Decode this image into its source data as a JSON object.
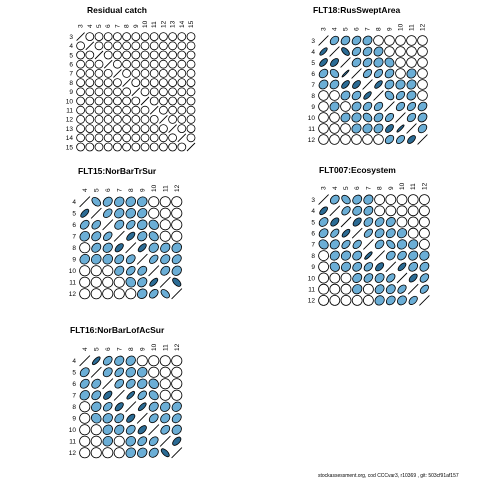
{
  "footer": "stockassessment.org,  cod CCCvar3,  r10369 ,  git:  503cf91af157",
  "colors": {
    "positive": "#6baed6",
    "pos_strong": "#2b6b94",
    "neutral": "#ffffff",
    "stroke": "#000000"
  },
  "chart_data": [
    {
      "type": "correlation-matrix",
      "title": "Residual catch",
      "ages": [
        "3",
        "4",
        "5",
        "6",
        "7",
        "8",
        "9",
        "10",
        "11",
        "12",
        "13",
        "14",
        "15"
      ],
      "upper_strength": 0.05,
      "lower_strength": 0.0
    },
    {
      "type": "correlation-matrix",
      "title": "FLT18:RusSweptArea",
      "ages": [
        "3",
        "4",
        "5",
        "6",
        "7",
        "8",
        "9",
        "10",
        "11",
        "12"
      ],
      "upper_strength": 0.7,
      "lower_strength": 0.9
    },
    {
      "type": "correlation-matrix",
      "title": "FLT15:NorBarTrSur",
      "ages": [
        "4",
        "5",
        "6",
        "7",
        "8",
        "9",
        "10",
        "11",
        "12"
      ],
      "upper_strength": 0.75,
      "lower_strength": 0.7
    },
    {
      "type": "correlation-matrix",
      "title": "FLT007:Ecosystem",
      "ages": [
        "3",
        "4",
        "5",
        "6",
        "7",
        "8",
        "9",
        "10",
        "11",
        "12"
      ],
      "upper_strength": 0.75,
      "lower_strength": 0.8
    },
    {
      "type": "correlation-matrix",
      "title": "FLT16:NorBarLofAcSur",
      "ages": [
        "4",
        "5",
        "6",
        "7",
        "8",
        "9",
        "10",
        "11",
        "12"
      ],
      "upper_strength": 0.75,
      "lower_strength": 0.7
    }
  ]
}
